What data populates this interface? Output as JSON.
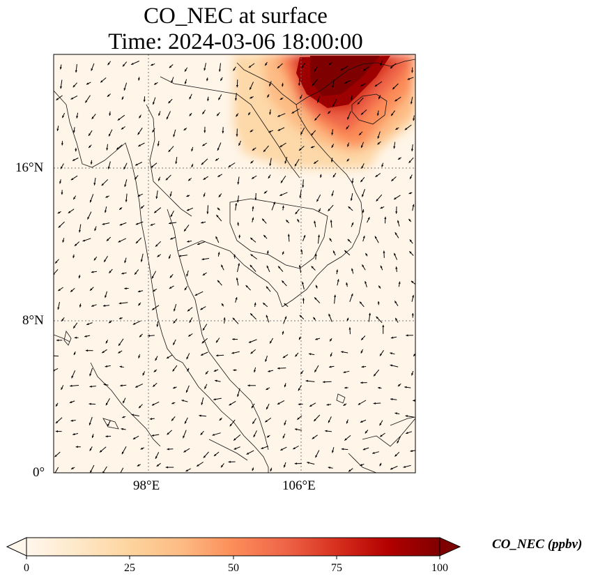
{
  "title": {
    "line1": "CO_NEC at surface",
    "line2": "Time: 2024-03-06 18:00:00"
  },
  "map": {
    "projection": "PlateCarree",
    "lon_range": [
      93,
      112
    ],
    "lat_range": [
      0,
      22
    ],
    "lat_ticks": [
      {
        "value": 16,
        "label": "16°N"
      },
      {
        "value": 8,
        "label": "8°N"
      },
      {
        "value": 0,
        "label": "0°"
      }
    ],
    "lon_ticks": [
      {
        "value": 98,
        "label": "98°E"
      },
      {
        "value": 106,
        "label": "106°E"
      }
    ],
    "gridlines": "dotted",
    "wind_vectors": true,
    "plume": "high CO_NEC over northern Vietnam and southern China (> 100 ppbv), decreasing south-west to ~16°N"
  },
  "colorbar": {
    "label": "CO_NEC (ppbv)",
    "colormap": "OrRd",
    "min": 0,
    "max": 100,
    "ticks": [
      "0",
      "25",
      "50",
      "75",
      "100"
    ],
    "extend": "both",
    "colors": [
      "#fff7ec",
      "#fee8c8",
      "#fdd49e",
      "#fdbb84",
      "#fc8d59",
      "#ef6548",
      "#d7301f",
      "#b30000",
      "#7f0000"
    ]
  }
}
